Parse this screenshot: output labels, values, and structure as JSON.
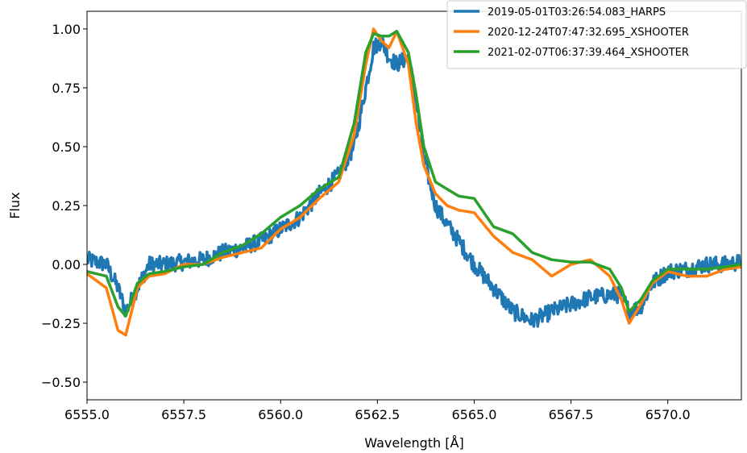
{
  "chart_data": {
    "type": "line",
    "title": "",
    "xlabel": "Wavelength [Å]",
    "ylabel": "Flux",
    "xlim": [
      6555.0,
      6571.9
    ],
    "ylim": [
      -0.575,
      1.075
    ],
    "xticks": [
      6555.0,
      6557.5,
      6560.0,
      6562.5,
      6565.0,
      6567.5,
      6570.0
    ],
    "xtick_labels": [
      "6555.0",
      "6557.5",
      "6560.0",
      "6562.5",
      "6565.0",
      "6567.5",
      "6570.0"
    ],
    "yticks": [
      1.0,
      0.75,
      0.5,
      0.25,
      0.0,
      -0.25,
      -0.5
    ],
    "ytick_labels": [
      "1.00",
      "0.75",
      "0.50",
      "0.25",
      "0.00",
      "−0.25",
      "−0.50"
    ],
    "grid": false,
    "legend_position": "top-right",
    "series": [
      {
        "name": "2019-05-01T03:26:54.083_HARPS",
        "color": "#1f77b4",
        "noisy": true,
        "x": [
          6555.0,
          6555.5,
          6555.8,
          6556.0,
          6556.3,
          6556.6,
          6557.0,
          6557.5,
          6558.0,
          6558.5,
          6559.0,
          6559.5,
          6560.0,
          6560.5,
          6561.0,
          6561.5,
          6561.9,
          6562.2,
          6562.4,
          6562.6,
          6562.8,
          6563.0,
          6563.3,
          6563.5,
          6563.7,
          6564.0,
          6564.3,
          6564.6,
          6565.0,
          6565.5,
          6566.0,
          6566.5,
          6567.0,
          6567.5,
          6568.0,
          6568.5,
          6568.8,
          6569.0,
          6569.3,
          6569.6,
          6570.0,
          6570.5,
          6571.0,
          6571.5,
          6571.9
        ],
        "y": [
          0.02,
          0.0,
          -0.1,
          -0.2,
          -0.1,
          0.0,
          0.0,
          0.01,
          0.02,
          0.05,
          0.07,
          0.1,
          0.15,
          0.2,
          0.3,
          0.38,
          0.5,
          0.75,
          0.92,
          0.95,
          0.88,
          0.85,
          0.88,
          0.7,
          0.45,
          0.25,
          0.17,
          0.1,
          0.0,
          -0.1,
          -0.2,
          -0.24,
          -0.2,
          -0.17,
          -0.14,
          -0.13,
          -0.13,
          -0.2,
          -0.18,
          -0.08,
          -0.03,
          -0.02,
          0.0,
          0.0,
          0.01
        ]
      },
      {
        "name": "2020-12-24T07:47:32.695_XSHOOTER",
        "color": "#ff7f0e",
        "noisy": false,
        "x": [
          6555.0,
          6555.5,
          6555.8,
          6556.0,
          6556.3,
          6556.6,
          6557.0,
          6557.5,
          6558.0,
          6558.5,
          6559.0,
          6559.5,
          6560.0,
          6560.5,
          6561.0,
          6561.5,
          6561.9,
          6562.2,
          6562.4,
          6562.6,
          6562.8,
          6563.0,
          6563.3,
          6563.5,
          6563.7,
          6564.0,
          6564.3,
          6564.6,
          6565.0,
          6565.5,
          6566.0,
          6566.5,
          6567.0,
          6567.5,
          6568.0,
          6568.5,
          6568.8,
          6569.0,
          6569.3,
          6569.6,
          6570.0,
          6570.5,
          6571.0,
          6571.5,
          6571.9
        ],
        "y": [
          -0.04,
          -0.1,
          -0.28,
          -0.3,
          -0.1,
          -0.05,
          -0.04,
          0.0,
          0.0,
          0.03,
          0.05,
          0.07,
          0.15,
          0.2,
          0.28,
          0.35,
          0.55,
          0.85,
          1.0,
          0.95,
          0.92,
          0.99,
          0.85,
          0.6,
          0.42,
          0.3,
          0.25,
          0.23,
          0.22,
          0.12,
          0.05,
          0.02,
          -0.05,
          0.0,
          0.02,
          -0.05,
          -0.15,
          -0.25,
          -0.17,
          -0.08,
          -0.03,
          -0.05,
          -0.05,
          -0.02,
          -0.01
        ]
      },
      {
        "name": "2021-02-07T06:37:39.464_XSHOOTER",
        "color": "#2ca02c",
        "noisy": false,
        "x": [
          6555.0,
          6555.5,
          6555.8,
          6556.0,
          6556.3,
          6556.6,
          6557.0,
          6557.5,
          6558.0,
          6558.5,
          6559.0,
          6559.5,
          6560.0,
          6560.5,
          6561.0,
          6561.5,
          6561.9,
          6562.2,
          6562.4,
          6562.6,
          6562.8,
          6563.0,
          6563.3,
          6563.5,
          6563.7,
          6564.0,
          6564.3,
          6564.6,
          6565.0,
          6565.5,
          6566.0,
          6566.5,
          6567.0,
          6567.5,
          6568.0,
          6568.5,
          6568.8,
          6569.0,
          6569.3,
          6569.6,
          6570.0,
          6570.5,
          6571.0,
          6571.5,
          6571.9
        ],
        "y": [
          -0.03,
          -0.05,
          -0.18,
          -0.22,
          -0.08,
          -0.04,
          -0.03,
          -0.01,
          0.0,
          0.05,
          0.08,
          0.13,
          0.2,
          0.25,
          0.32,
          0.37,
          0.6,
          0.9,
          0.98,
          0.97,
          0.97,
          0.99,
          0.9,
          0.72,
          0.5,
          0.35,
          0.32,
          0.29,
          0.28,
          0.16,
          0.13,
          0.05,
          0.02,
          0.01,
          0.01,
          -0.02,
          -0.1,
          -0.2,
          -0.15,
          -0.07,
          -0.02,
          -0.02,
          -0.02,
          -0.01,
          0.0
        ]
      }
    ]
  }
}
